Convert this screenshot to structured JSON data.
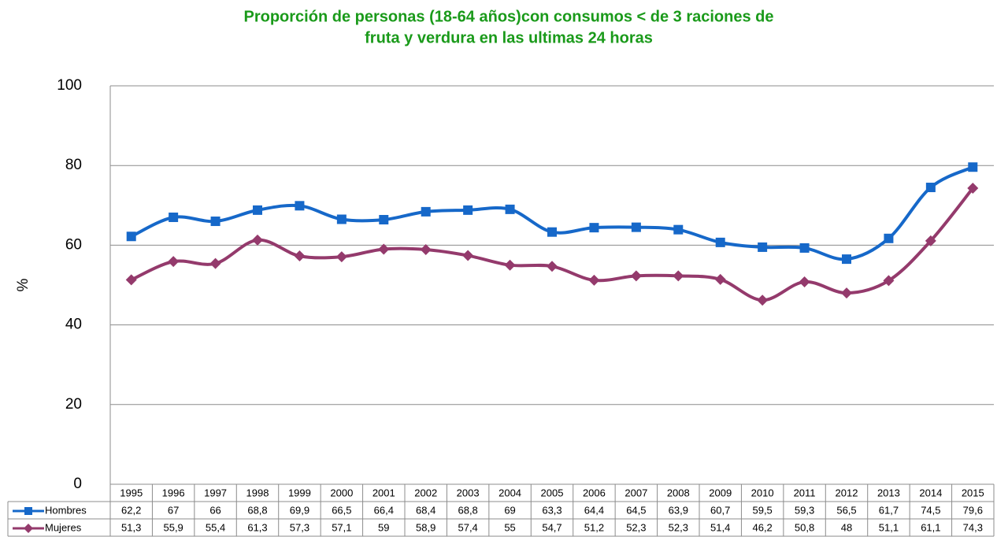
{
  "chart_data": {
    "type": "line",
    "title": [
      "Proporción de personas (18-64 años)con consumos < de 3 raciones de",
      "fruta y verdura en las ultimas 24 horas"
    ],
    "y_label": "%",
    "categories": [
      "1995",
      "1996",
      "1997",
      "1998",
      "1999",
      "2000",
      "2001",
      "2002",
      "2003",
      "2004",
      "2005",
      "2006",
      "2007",
      "2008",
      "2009",
      "2010",
      "2011",
      "2012",
      "2013",
      "2014",
      "2015"
    ],
    "series": [
      {
        "name": "Hombres",
        "color": "#1668c9",
        "marker": "square",
        "values": [
          62.2,
          67,
          66,
          68.8,
          69.9,
          66.5,
          66.4,
          68.4,
          68.8,
          69,
          63.3,
          64.4,
          64.5,
          63.9,
          60.7,
          59.5,
          59.3,
          56.5,
          61.7,
          74.5,
          79.6
        ],
        "value_labels": [
          "62,2",
          "67",
          "66",
          "68,8",
          "69,9",
          "66,5",
          "66,4",
          "68,4",
          "68,8",
          "69",
          "63,3",
          "64,4",
          "64,5",
          "63,9",
          "60,7",
          "59,5",
          "59,3",
          "56,5",
          "61,7",
          "74,5",
          "79,6"
        ]
      },
      {
        "name": "Mujeres",
        "color": "#943a6c",
        "marker": "diamond",
        "values": [
          51.3,
          55.9,
          55.4,
          61.3,
          57.3,
          57.1,
          59,
          58.9,
          57.4,
          55,
          54.7,
          51.2,
          52.3,
          52.3,
          51.4,
          46.2,
          50.8,
          48,
          51.1,
          61.1,
          74.3
        ],
        "value_labels": [
          "51,3",
          "55,9",
          "55,4",
          "61,3",
          "57,3",
          "57,1",
          "59",
          "58,9",
          "57,4",
          "55",
          "54,7",
          "51,2",
          "52,3",
          "52,3",
          "51,4",
          "46,2",
          "50,8",
          "48",
          "51,1",
          "61,1",
          "74,3"
        ]
      }
    ],
    "ylim": [
      0,
      100
    ],
    "yticks": [
      0,
      20,
      40,
      60,
      80,
      100
    ],
    "grid": true
  }
}
